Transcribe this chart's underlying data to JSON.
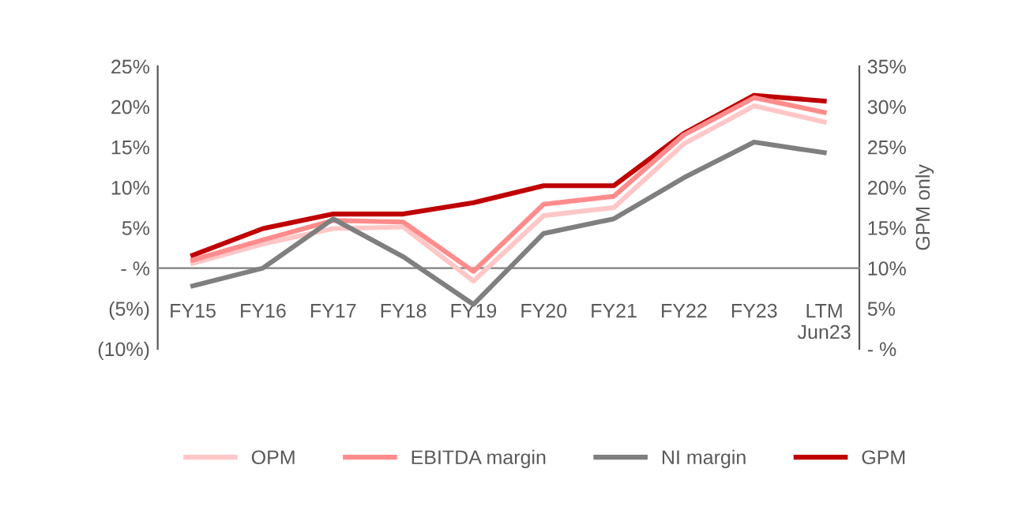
{
  "chart_data": {
    "type": "line",
    "categories": [
      "FY15",
      "FY16",
      "FY17",
      "FY18",
      "FY19",
      "FY20",
      "FY21",
      "FY22",
      "FY23",
      "LTM\nJun23"
    ],
    "series": [
      {
        "name": "OPM",
        "color": "#ffc7c7",
        "values": [
          0.6,
          3.0,
          4.9,
          5.1,
          -1.6,
          6.5,
          7.5,
          15.4,
          20.1,
          18.1
        ]
      },
      {
        "name": "EBITDA margin",
        "color": "#ff8c8c",
        "values": [
          1.0,
          3.5,
          5.9,
          5.7,
          -0.4,
          7.9,
          8.9,
          16.5,
          21.1,
          19.3
        ]
      },
      {
        "name": "NI margin",
        "color": "#7f7f7f",
        "values": [
          -2.2,
          0,
          6.1,
          1.4,
          -4.5,
          4.3,
          6.1,
          11.2,
          15.6,
          14.3
        ]
      },
      {
        "name": "GPM",
        "color": "#c00000",
        "axis": "y2",
        "values": [
          11.6,
          14.9,
          16.7,
          16.7,
          18.1,
          20.2,
          20.2,
          26.7,
          31.4,
          30.7
        ]
      }
    ],
    "ylim": [
      -10,
      25
    ],
    "yticks": [
      {
        "value": -10,
        "label": "(10%)"
      },
      {
        "value": -5,
        "label": "(5%)"
      },
      {
        "value": 0,
        "label": "- %"
      },
      {
        "value": 5,
        "label": "5%"
      },
      {
        "value": 10,
        "label": "10%"
      },
      {
        "value": 15,
        "label": "15%"
      },
      {
        "value": 20,
        "label": "20%"
      },
      {
        "value": 25,
        "label": "25%"
      }
    ],
    "y2lim": [
      0,
      35
    ],
    "y2ticks": [
      {
        "value": 0,
        "label": "- %"
      },
      {
        "value": 5,
        "label": "5%"
      },
      {
        "value": 10,
        "label": "10%"
      },
      {
        "value": 15,
        "label": "15%"
      },
      {
        "value": 20,
        "label": "20%"
      },
      {
        "value": 25,
        "label": "25%"
      },
      {
        "value": 30,
        "label": "30%"
      },
      {
        "value": 35,
        "label": "35%"
      }
    ],
    "y2label": "GPM only",
    "legend": "bottom",
    "grid": false,
    "marker": "none",
    "line_style": "solid"
  }
}
